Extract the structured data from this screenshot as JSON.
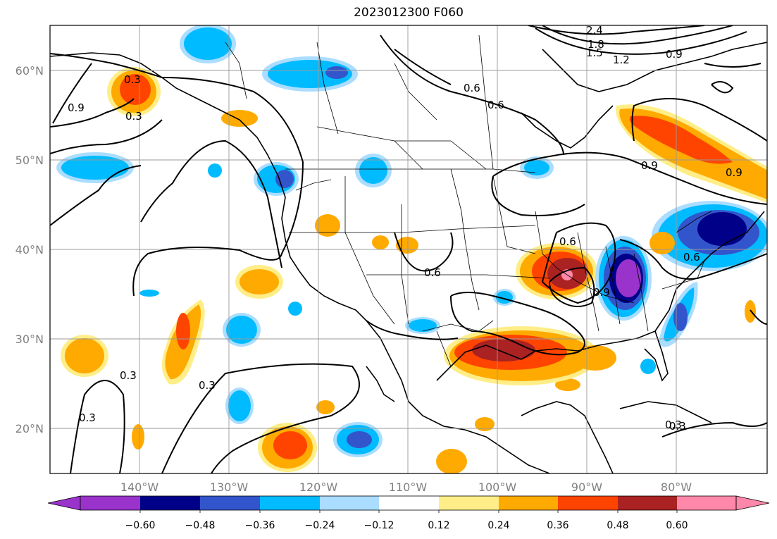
{
  "title": "2023012300 F060",
  "latitude_labels": [
    "60°N",
    "50°N",
    "40°N",
    "30°N",
    "20°N"
  ],
  "longitude_labels": [
    "140°W",
    "130°W",
    "120°W",
    "110°W",
    "100°W",
    "90°W",
    "80°W"
  ],
  "colorbar": {
    "ticks": [
      "−0.60",
      "−0.48",
      "−0.36",
      "−0.24",
      "−0.12",
      "0.12",
      "0.24",
      "0.36",
      "0.48",
      "0.60"
    ],
    "colors": [
      "#9933cc",
      "#000088",
      "#3355cc",
      "#00bbff",
      "#aaddff",
      "#ffffff",
      "#ffee88",
      "#ffaa00",
      "#ff4400",
      "#aa2222",
      "#ff88aa"
    ]
  },
  "contour_labels": [
    "2.4",
    "1.8",
    "1.5",
    "1.2",
    "0.9",
    "0.6",
    "0.3",
    "0.9",
    "0.3",
    "0.6",
    "0.6",
    "0.9",
    "0.6",
    "0.6",
    "0.3",
    "0.3",
    "0.3",
    "0.3",
    "0.9",
    "0.9",
    "0.3"
  ]
}
